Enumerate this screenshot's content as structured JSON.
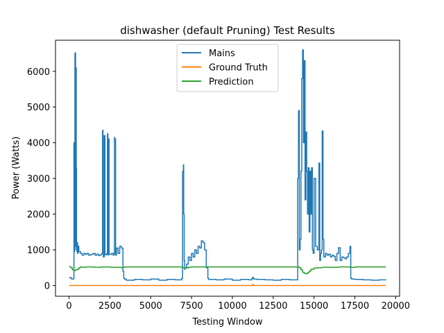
{
  "chart_data": {
    "type": "line",
    "title": "dishwasher (default Pruning) Test Results",
    "xlabel": "Testing Window",
    "ylabel": "Power (Watts)",
    "xlim": [
      -830,
      20240
    ],
    "ylim": [
      -300,
      6870
    ],
    "x_ticks": [
      0,
      2500,
      5000,
      7500,
      10000,
      12500,
      15000,
      17500,
      20000
    ],
    "x_tick_labels": [
      "0",
      "2500",
      "5000",
      "7500",
      "10000",
      "12500",
      "15000",
      "17500",
      "20000"
    ],
    "y_ticks": [
      0,
      1000,
      2000,
      3000,
      4000,
      5000,
      6000
    ],
    "y_tick_labels": [
      "0",
      "1000",
      "2000",
      "3000",
      "4000",
      "5000",
      "6000"
    ],
    "legend_position": "top-center",
    "grid": false,
    "series": [
      {
        "name": "Mains",
        "color": "#1f77b4",
        "x": [
          0,
          150,
          280,
          300,
          320,
          340,
          360,
          380,
          400,
          420,
          440,
          460,
          480,
          500,
          520,
          560,
          600,
          700,
          800,
          900,
          1000,
          1100,
          1200,
          1300,
          1400,
          1500,
          1600,
          1700,
          1800,
          1900,
          2000,
          2050,
          2080,
          2100,
          2150,
          2200,
          2300,
          2350,
          2380,
          2400,
          2450,
          2500,
          2600,
          2700,
          2750,
          2780,
          2800,
          2850,
          2900,
          3000,
          3100,
          3200,
          3300,
          3350,
          3400,
          3500,
          4000,
          4500,
          5000,
          5500,
          6000,
          6500,
          6900,
          6950,
          7000,
          7020,
          7050,
          7080,
          7100,
          7200,
          7300,
          7400,
          7500,
          7600,
          7700,
          7800,
          7900,
          8000,
          8100,
          8200,
          8300,
          8400,
          8500,
          8550,
          9000,
          9500,
          10000,
          10500,
          11000,
          11200,
          11250,
          11300,
          11500,
          12000,
          12500,
          13000,
          13500,
          14000,
          14050,
          14100,
          14150,
          14200,
          14250,
          14300,
          14350,
          14400,
          14450,
          14500,
          14550,
          14600,
          14650,
          14700,
          14750,
          14800,
          14850,
          14900,
          14950,
          15000,
          15100,
          15200,
          15300,
          15350,
          15400,
          15450,
          15500,
          15550,
          15600,
          15700,
          15800,
          15900,
          16000,
          16100,
          16200,
          16300,
          16400,
          16500,
          16600,
          16700,
          16800,
          16900,
          17000,
          17100,
          17200,
          17250,
          17300,
          17500,
          18000,
          18500,
          19000,
          19400
        ],
        "y": [
          220,
          180,
          200,
          4000,
          950,
          1000,
          6500,
          6520,
          1100,
          6100,
          3300,
          1000,
          950,
          1200,
          900,
          1100,
          950,
          900,
          850,
          900,
          870,
          900,
          850,
          860,
          880,
          900,
          850,
          880,
          840,
          860,
          900,
          4350,
          900,
          800,
          4200,
          860,
          900,
          4250,
          850,
          4100,
          880,
          870,
          900,
          850,
          880,
          4150,
          4100,
          850,
          1050,
          900,
          1100,
          1050,
          400,
          200,
          180,
          150,
          170,
          160,
          180,
          150,
          170,
          160,
          200,
          3200,
          3380,
          2000,
          700,
          450,
          500,
          600,
          800,
          700,
          900,
          800,
          1000,
          900,
          1100,
          1050,
          1250,
          1200,
          1000,
          500,
          200,
          170,
          160,
          180,
          150,
          170,
          160,
          200,
          230,
          180,
          170,
          160,
          150,
          170,
          160,
          3000,
          4900,
          1000,
          1300,
          3200,
          5800,
          6600,
          4000,
          6300,
          2400,
          4300,
          3200,
          2000,
          3300,
          1500,
          3200,
          2000,
          3300,
          1000,
          900,
          3000,
          1100,
          1000,
          3430,
          700,
          900,
          1000,
          4330,
          1300,
          800,
          900,
          850,
          880,
          800,
          850,
          820,
          700,
          900,
          1060,
          700,
          800,
          780,
          750,
          800,
          900,
          1100,
          200,
          180,
          170,
          160,
          150,
          160,
          170
        ]
      },
      {
        "name": "Ground Truth",
        "color": "#ff7f0e",
        "x": [
          0,
          5000,
          10000,
          11200,
          11250,
          11300,
          15000,
          19400
        ],
        "y": [
          0,
          0,
          0,
          0,
          30,
          0,
          0,
          0
        ]
      },
      {
        "name": "Prediction",
        "color": "#2ca02c",
        "x": [
          0,
          100,
          200,
          300,
          400,
          500,
          600,
          700,
          800,
          1000,
          1500,
          2000,
          2500,
          3000,
          3200,
          3300,
          3400,
          4000,
          5000,
          6000,
          6700,
          6900,
          7000,
          7100,
          7300,
          7500,
          8000,
          9000,
          10000,
          11000,
          12000,
          13000,
          14000,
          14100,
          14200,
          14300,
          14400,
          14500,
          14600,
          14700,
          14800,
          14900,
          15000,
          15200,
          15500,
          16000,
          16500,
          17000,
          17200,
          17500,
          18000,
          19000,
          19400
        ],
        "y": [
          530,
          500,
          440,
          420,
          440,
          450,
          500,
          520,
          510,
          520,
          510,
          520,
          510,
          510,
          500,
          510,
          520,
          520,
          520,
          520,
          520,
          510,
          500,
          490,
          510,
          520,
          520,
          520,
          520,
          520,
          520,
          520,
          520,
          500,
          440,
          370,
          340,
          330,
          360,
          400,
          450,
          460,
          490,
          500,
          510,
          510,
          520,
          520,
          510,
          520,
          520,
          520,
          520
        ]
      }
    ]
  }
}
